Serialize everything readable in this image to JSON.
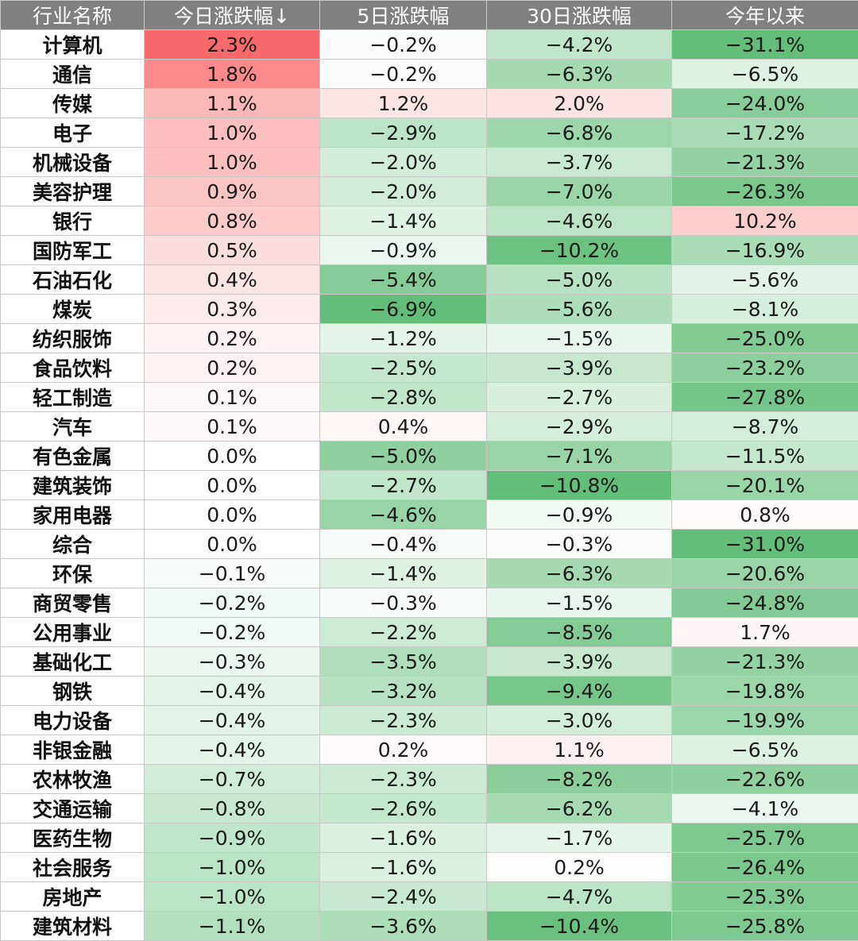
{
  "chart_data": {
    "type": "heatmap",
    "columns": [
      "行业名称",
      "今日涨跌幅↓",
      "5日涨跌幅",
      "30日涨跌幅",
      "今年以来"
    ],
    "value_suffix": "%",
    "colors": {
      "positive_max": "#f8696b",
      "negative_max": "#63be7b",
      "neutral": "#ffffff",
      "header_bg": "#808080",
      "header_text": "#ffffff"
    },
    "rows": [
      {
        "name": "计算机",
        "values": [
          2.3,
          -0.2,
          -4.2,
          -31.1
        ]
      },
      {
        "name": "通信",
        "values": [
          1.8,
          -0.2,
          -6.3,
          -6.5
        ]
      },
      {
        "name": "传媒",
        "values": [
          1.1,
          1.2,
          2.0,
          -24.0
        ]
      },
      {
        "name": "电子",
        "values": [
          1.0,
          -2.9,
          -6.8,
          -17.2
        ]
      },
      {
        "name": "机械设备",
        "values": [
          1.0,
          -2.0,
          -3.7,
          -21.3
        ]
      },
      {
        "name": "美容护理",
        "values": [
          0.9,
          -2.0,
          -7.0,
          -26.3
        ]
      },
      {
        "name": "银行",
        "values": [
          0.8,
          -1.4,
          -4.6,
          10.2
        ]
      },
      {
        "name": "国防军工",
        "values": [
          0.5,
          -0.9,
          -10.2,
          -16.9
        ]
      },
      {
        "name": "石油石化",
        "values": [
          0.4,
          -5.4,
          -5.0,
          -5.6
        ]
      },
      {
        "name": "煤炭",
        "values": [
          0.3,
          -6.9,
          -5.6,
          -8.1
        ]
      },
      {
        "name": "纺织服饰",
        "values": [
          0.2,
          -1.2,
          -1.5,
          -25.0
        ]
      },
      {
        "name": "食品饮料",
        "values": [
          0.2,
          -2.5,
          -3.9,
          -23.2
        ]
      },
      {
        "name": "轻工制造",
        "values": [
          0.1,
          -2.8,
          -2.7,
          -27.8
        ]
      },
      {
        "name": "汽车",
        "values": [
          0.1,
          0.4,
          -2.9,
          -8.7
        ]
      },
      {
        "name": "有色金属",
        "values": [
          0.0,
          -5.0,
          -7.1,
          -11.5
        ]
      },
      {
        "name": "建筑装饰",
        "values": [
          0.0,
          -2.7,
          -10.8,
          -20.1
        ]
      },
      {
        "name": "家用电器",
        "values": [
          0.0,
          -4.6,
          -0.9,
          0.8
        ]
      },
      {
        "name": "综合",
        "values": [
          0.0,
          -0.4,
          -0.3,
          -31.0
        ]
      },
      {
        "name": "环保",
        "values": [
          -0.1,
          -1.4,
          -6.3,
          -20.6
        ]
      },
      {
        "name": "商贸零售",
        "values": [
          -0.2,
          -0.3,
          -1.5,
          -24.8
        ]
      },
      {
        "name": "公用事业",
        "values": [
          -0.2,
          -2.2,
          -8.5,
          1.7
        ]
      },
      {
        "name": "基础化工",
        "values": [
          -0.3,
          -3.5,
          -3.9,
          -21.3
        ]
      },
      {
        "name": "钢铁",
        "values": [
          -0.4,
          -3.2,
          -9.4,
          -19.8
        ]
      },
      {
        "name": "电力设备",
        "values": [
          -0.4,
          -2.3,
          -3.0,
          -19.9
        ]
      },
      {
        "name": "非银金融",
        "values": [
          -0.4,
          0.2,
          1.1,
          -6.5
        ]
      },
      {
        "name": "农林牧渔",
        "values": [
          -0.7,
          -2.3,
          -8.2,
          -22.6
        ]
      },
      {
        "name": "交通运输",
        "values": [
          -0.8,
          -2.6,
          -6.2,
          -4.1
        ]
      },
      {
        "name": "医药生物",
        "values": [
          -0.9,
          -1.6,
          -1.7,
          -25.7
        ]
      },
      {
        "name": "社会服务",
        "values": [
          -1.0,
          -1.6,
          0.2,
          -26.4
        ]
      },
      {
        "name": "房地产",
        "values": [
          -1.0,
          -2.4,
          -4.7,
          -25.3
        ]
      },
      {
        "name": "建筑材料",
        "values": [
          -1.1,
          -3.6,
          -10.4,
          -25.8
        ]
      }
    ]
  }
}
